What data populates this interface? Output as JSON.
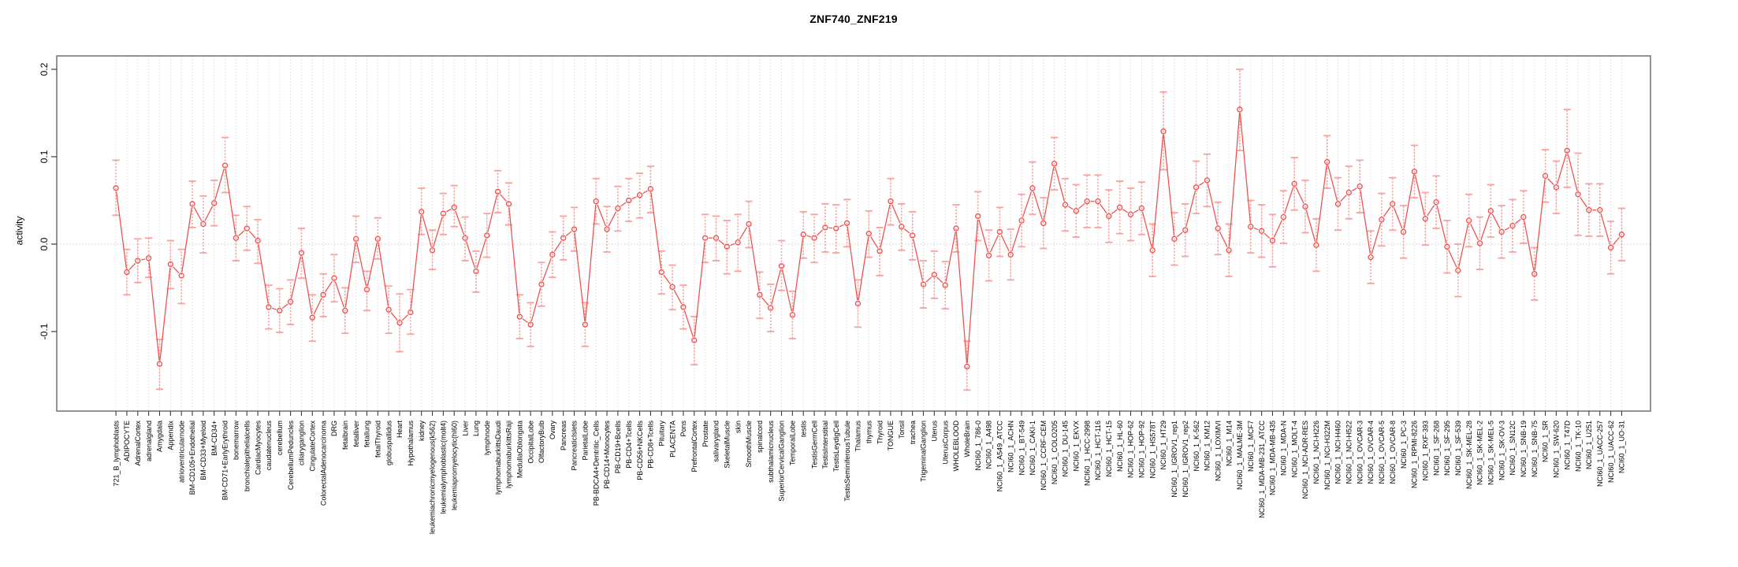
{
  "title": "ZNF740_ZNF219",
  "y_axis": {
    "label": "activity",
    "tick_labels": [
      "0.2",
      "0.1",
      "0.0",
      "-0.1"
    ]
  },
  "colors": {
    "line": "#ef4e4b",
    "marker": "#ef4e4b",
    "error_bar": "#f9a19f",
    "grid": "#dcdcdc",
    "zero_line": "#d0d0d0",
    "box": "#7a7a7a",
    "tick": "#3c3c3c",
    "label_text": "#000000"
  },
  "chart_data": {
    "type": "line",
    "title": "ZNF740_ZNF219",
    "xlabel": "",
    "ylabel": "activity",
    "ylim": [
      -0.19,
      0.215
    ],
    "yticks": [
      0.2,
      0.1,
      0.0,
      -0.1
    ],
    "grid": "vertical dotted gridline per category; dotted horizontal line at y=0",
    "legend": "none",
    "marker": "open-circle",
    "error_bars": true,
    "categories": [
      "721_B_lymphoblasts",
      "ADIPOCYTE",
      "AdrenalCortex",
      "adrenalgland",
      "Amygdala",
      "Appendix",
      "atrioventricularnode",
      "BM-CD105+Endothelial",
      "BM-CD33+Myeloid",
      "BM-CD34+",
      "BM-CD71+EarlyErythroid",
      "bonemarrow",
      "bronchialepithelialcells",
      "CardiacMyocytes",
      "caudatenucleus",
      "cerebellum",
      "CerebellumPeduncles",
      "ciliaryganglion",
      "CingulateCortex",
      "ColorectalAdenocarcinoma",
      "DRG",
      "fetalbrain",
      "fetalliver",
      "fetallung",
      "fetalThyroid",
      "globuspallidus",
      "Heart",
      "Hypothalamus",
      "kidney",
      "leukemiachronicmyelogenous(k562)",
      "leukemialymphoblastic(molt4)",
      "leukemiapromyelocytic(hl60)",
      "Liver",
      "Lung",
      "lymphnode",
      "lymphomaburkittsDaudi",
      "lymphomaburkittsRaji",
      "MedullaOblongata",
      "OccipitalLobe",
      "OlfactoryBulb",
      "Ovary",
      "Pancreas",
      "PancreaticIslets",
      "ParietalLobe",
      "PB-BDCA4+Dentritic_Cells",
      "PB-CD14+Monocytes",
      "PB-CD19+Bcells",
      "PB-CD4+Tcells",
      "PB-CD56+NKCells",
      "PB-CD8+Tcells",
      "Pituitary",
      "PLACENTA",
      "Pons",
      "PrefrontalCortex",
      "Prostate",
      "salivarygland",
      "SkeletalMuscle",
      "skin",
      "SmoothMuscle",
      "spinalcord",
      "subthalamicnucleus",
      "SuperiorCervicalGanglion",
      "TemporalLobe",
      "testis",
      "TestisGermCell",
      "TestisInterstitial",
      "TestisLeydigCell",
      "TestisSeminiferousTubule",
      "Thalamus",
      "thymus",
      "Thyroid",
      "TONGUE",
      "Tonsil",
      "trachea",
      "TrigeminalGanglion",
      "Uterus",
      "UterusCorpus",
      "WHOLEBLOOD",
      "WholeBrain",
      "NCI60_1_786-0",
      "NCI60_1_A498",
      "NCI60_1_A549_ATCC",
      "NCI60_1_ACHN",
      "NCI60_1_BT-549",
      "NCI60_1_CAKI-1",
      "NCI60_1_CCRF-CEM",
      "NCI60_1_COLO205",
      "NCI60_1_DU-145",
      "NCI60_1_EKVX",
      "NCI60_1_HCC-2998",
      "NCI60_1_HCT-116",
      "NCI60_1_HCT-15",
      "NCI60_1_HL-60",
      "NCI60_1_HOP-62",
      "NCI60_1_HOP-92",
      "NCI60_1_HS578T",
      "NCI60_1_HT29",
      "NCI60_1_IGROV1_rep1",
      "NCI60_1_IGROV1_rep2",
      "NCI60_1_K-562",
      "NCI60_1_KM12",
      "NCI60_1_LOXIMVI",
      "NCI60_1_M14",
      "NCI60_1_MALME-3M",
      "NCI60_1_MCF7",
      "NCI60_1_MDA-MB-231_ATCC",
      "NCI60_1_MDA-MB-435",
      "NCI60_1_MDA-N",
      "NCI60_1_MOLT-4",
      "NCI60_1_NCI-ADR-RES",
      "NCI60_1_NCI-H226",
      "NCI60_1_NCI-H322M",
      "NCI60_1_NCI-H460",
      "NCI60_1_NCI-H522",
      "NCI60_1_OVCAR-3",
      "NCI60_1_OVCAR-4",
      "NCI60_1_OVCAR-5",
      "NCI60_1_OVCAR-8",
      "NCI60_1_PC-3",
      "NCI60_1_RPMI-8226",
      "NCI60_1_RXF-393",
      "NCI60_1_SF-268",
      "NCI60_1_SF-295",
      "NCI60_1_SF-539",
      "NCI60_1_SK-MEL-28",
      "NCI60_1_SK-MEL-2",
      "NCI60_1_SK-MEL-5",
      "NCI60_1_SK-OV-3",
      "NCI60_1_SN12C",
      "NCI60_1_SNB-19",
      "NCI60_1_SNB-75",
      "NCI60_1_SR",
      "NCI60_1_SW-620",
      "NCI60_1_T47D",
      "NCI60_1_TK-10",
      "NCI60_1_U251",
      "NCI60_1_UACC-257",
      "NCI60_1_UACC-62",
      "NCI60_1_UO-31"
    ],
    "series": [
      {
        "name": "activity",
        "values": [
          0.064,
          -0.032,
          -0.019,
          -0.016,
          -0.137,
          -0.023,
          -0.036,
          0.046,
          0.023,
          0.047,
          0.09,
          0.007,
          0.018,
          0.004,
          -0.072,
          -0.076,
          -0.066,
          -0.01,
          -0.084,
          -0.058,
          -0.039,
          -0.076,
          0.006,
          -0.052,
          0.006,
          -0.075,
          -0.09,
          -0.078,
          0.037,
          -0.007,
          0.035,
          0.042,
          0.007,
          -0.031,
          0.01,
          0.06,
          0.046,
          -0.083,
          -0.092,
          -0.046,
          -0.012,
          0.007,
          0.017,
          -0.092,
          0.049,
          0.017,
          0.041,
          0.05,
          0.056,
          0.063,
          -0.032,
          -0.049,
          -0.072,
          -0.11,
          0.007,
          0.007,
          -0.003,
          0.002,
          0.023,
          -0.058,
          -0.073,
          -0.025,
          -0.081,
          0.011,
          0.007,
          0.019,
          0.018,
          0.024,
          -0.068,
          0.012,
          -0.008,
          0.049,
          0.02,
          0.01,
          -0.046,
          -0.035,
          -0.047,
          0.018,
          -0.14,
          0.032,
          -0.013,
          0.014,
          -0.012,
          0.027,
          0.064,
          0.024,
          0.092,
          0.045,
          0.038,
          0.049,
          0.049,
          0.032,
          0.042,
          0.034,
          0.041,
          -0.007,
          0.129,
          0.006,
          0.016,
          0.065,
          0.073,
          0.018,
          -0.007,
          0.154,
          0.02,
          0.015,
          0.004,
          0.031,
          0.069,
          0.043,
          -0.001,
          0.094,
          0.046,
          0.059,
          0.066,
          -0.015,
          0.028,
          0.046,
          0.014,
          0.083,
          0.029,
          0.048,
          -0.003,
          -0.03,
          0.027,
          0.001,
          0.038,
          0.014,
          0.021,
          0.031,
          -0.034,
          0.078,
          0.065,
          0.107,
          0.057,
          0.039,
          0.039,
          -0.004,
          0.011
        ],
        "err_lo": [
          0.033,
          -0.058,
          -0.044,
          -0.038,
          -0.166,
          -0.051,
          -0.068,
          0.019,
          -0.01,
          0.021,
          0.059,
          -0.019,
          -0.007,
          -0.022,
          -0.097,
          -0.101,
          -0.092,
          -0.039,
          -0.111,
          -0.083,
          -0.066,
          -0.102,
          -0.021,
          -0.076,
          -0.017,
          -0.102,
          -0.123,
          -0.103,
          0.011,
          -0.029,
          0.011,
          0.02,
          -0.019,
          -0.055,
          -0.015,
          0.036,
          0.022,
          -0.108,
          -0.117,
          -0.071,
          -0.038,
          -0.018,
          -0.008,
          -0.117,
          0.023,
          -0.009,
          0.015,
          0.026,
          0.03,
          0.036,
          -0.057,
          -0.075,
          -0.097,
          -0.138,
          -0.021,
          -0.019,
          -0.034,
          -0.031,
          -0.004,
          -0.085,
          -0.1,
          -0.053,
          -0.108,
          -0.016,
          -0.021,
          -0.009,
          -0.01,
          -0.003,
          -0.095,
          -0.015,
          -0.036,
          0.022,
          -0.007,
          -0.018,
          -0.073,
          -0.062,
          -0.074,
          -0.009,
          -0.167,
          0.004,
          -0.042,
          -0.014,
          -0.041,
          -0.003,
          0.034,
          -0.005,
          0.062,
          0.015,
          0.008,
          0.019,
          0.019,
          0.002,
          0.012,
          0.004,
          0.011,
          -0.037,
          0.085,
          -0.024,
          -0.014,
          0.035,
          0.043,
          -0.012,
          -0.037,
          0.107,
          -0.01,
          -0.015,
          -0.026,
          0.001,
          0.039,
          0.013,
          -0.031,
          0.064,
          0.016,
          0.029,
          0.036,
          -0.045,
          -0.002,
          0.016,
          -0.016,
          0.053,
          -0.001,
          0.018,
          -0.033,
          -0.06,
          -0.003,
          -0.029,
          0.008,
          -0.016,
          -0.009,
          0.001,
          -0.064,
          0.048,
          0.035,
          0.065,
          0.01,
          0.009,
          0.009,
          -0.034,
          -0.019
        ],
        "err_hi": [
          0.096,
          -0.006,
          0.006,
          0.007,
          -0.109,
          0.004,
          -0.006,
          0.072,
          0.055,
          0.073,
          0.122,
          0.033,
          0.043,
          0.028,
          -0.047,
          -0.051,
          -0.041,
          0.018,
          -0.058,
          -0.034,
          -0.012,
          -0.05,
          0.032,
          -0.031,
          0.03,
          -0.048,
          -0.057,
          -0.052,
          0.064,
          0.016,
          0.058,
          0.067,
          0.031,
          -0.008,
          0.035,
          0.084,
          0.07,
          -0.058,
          -0.067,
          -0.021,
          0.014,
          0.032,
          0.042,
          -0.067,
          0.075,
          0.043,
          0.066,
          0.075,
          0.081,
          0.089,
          -0.008,
          -0.024,
          -0.047,
          -0.083,
          0.034,
          0.032,
          0.027,
          0.034,
          0.049,
          -0.032,
          -0.046,
          0.004,
          -0.054,
          0.037,
          0.034,
          0.046,
          0.045,
          0.051,
          -0.041,
          0.038,
          0.019,
          0.075,
          0.046,
          0.037,
          -0.019,
          -0.008,
          -0.02,
          0.045,
          -0.111,
          0.06,
          0.016,
          0.042,
          0.017,
          0.057,
          0.094,
          0.053,
          0.122,
          0.075,
          0.068,
          0.079,
          0.079,
          0.062,
          0.072,
          0.064,
          0.071,
          0.023,
          0.174,
          0.036,
          0.046,
          0.095,
          0.103,
          0.048,
          0.023,
          0.2,
          0.05,
          0.045,
          0.034,
          0.061,
          0.099,
          0.073,
          0.029,
          0.124,
          0.076,
          0.089,
          0.096,
          0.015,
          0.058,
          0.076,
          0.044,
          0.113,
          0.059,
          0.078,
          0.027,
          0.0,
          0.057,
          0.031,
          0.068,
          0.044,
          0.051,
          0.061,
          -0.004,
          0.108,
          0.095,
          0.154,
          0.104,
          0.069,
          0.069,
          0.026,
          0.041
        ]
      }
    ]
  }
}
